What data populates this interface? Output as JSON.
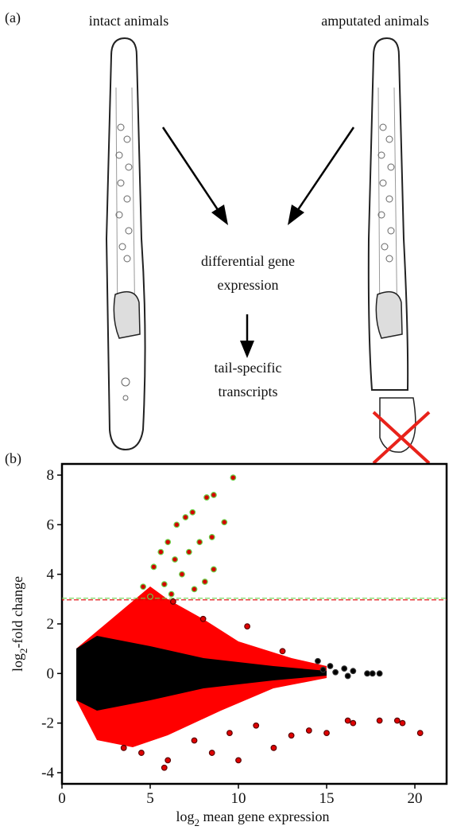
{
  "panel_a": {
    "label": "(a)",
    "left_label": "intact animals",
    "right_label": "amputated animals",
    "center_lines": [
      "differential gene",
      "expression"
    ],
    "result_lines": [
      "tail-specific",
      "transcripts"
    ]
  },
  "chart_data": {
    "type": "scatter",
    "panel_label": "(b)",
    "x_label": {
      "prefix": "log",
      "sub": "2",
      "suffix": " mean gene expression"
    },
    "y_label": {
      "prefix": "log",
      "sub": "2",
      "suffix": "-fold change"
    },
    "xlim": [
      0,
      21.8
    ],
    "ylim": [
      -4.45,
      8.45
    ],
    "xticks": [
      0,
      5,
      10,
      15,
      20
    ],
    "yticks": [
      -4,
      -2,
      0,
      2,
      4,
      6,
      8
    ],
    "threshold": 3,
    "series": [
      {
        "color": "#000000",
        "edge": "#333333",
        "x": [
          14.5,
          15.2,
          16.0,
          16.5,
          17.3,
          17.6,
          18.0,
          16.2,
          15.5,
          14.8
        ],
        "y": [
          0.5,
          0.3,
          0.2,
          0.1,
          0,
          0,
          0,
          -0.1,
          0.05,
          0.15
        ]
      },
      {
        "color": "#e00000",
        "edge": "#5a0000",
        "x": [
          6.3,
          8.0,
          10.5,
          12.5,
          16.2,
          16.5,
          18.0,
          19.0,
          20.3,
          19.3,
          15.0,
          14.0,
          13.0,
          11.0,
          9.5,
          7.5,
          6.0,
          5.8,
          4.5,
          3.5,
          8.5,
          10.0,
          12.0
        ],
        "y": [
          2.9,
          2.2,
          1.9,
          0.9,
          -1.9,
          -2.0,
          -1.9,
          -1.9,
          -2.4,
          -2.0,
          -2.4,
          -2.3,
          -2.5,
          -2.1,
          -2.4,
          -2.7,
          -3.5,
          -3.8,
          -3.2,
          -3.0,
          -3.2,
          -3.5,
          -3.0
        ]
      },
      {
        "color": "#d40000",
        "edge": "#6bd14a",
        "x": [
          9.7,
          8.6,
          8.2,
          7.4,
          7.0,
          9.2,
          6.5,
          8.5,
          6.0,
          7.8,
          5.6,
          7.2,
          8.6,
          6.4,
          5.2,
          6.8,
          8.1,
          4.6,
          5.8,
          7.5,
          6.2,
          5.0
        ],
        "y": [
          7.9,
          7.2,
          7.1,
          6.5,
          6.3,
          6.1,
          6.0,
          5.5,
          5.3,
          5.3,
          4.9,
          4.9,
          4.2,
          4.6,
          4.3,
          4.0,
          3.7,
          3.5,
          3.6,
          3.4,
          3.2,
          3.1
        ]
      }
    ]
  }
}
